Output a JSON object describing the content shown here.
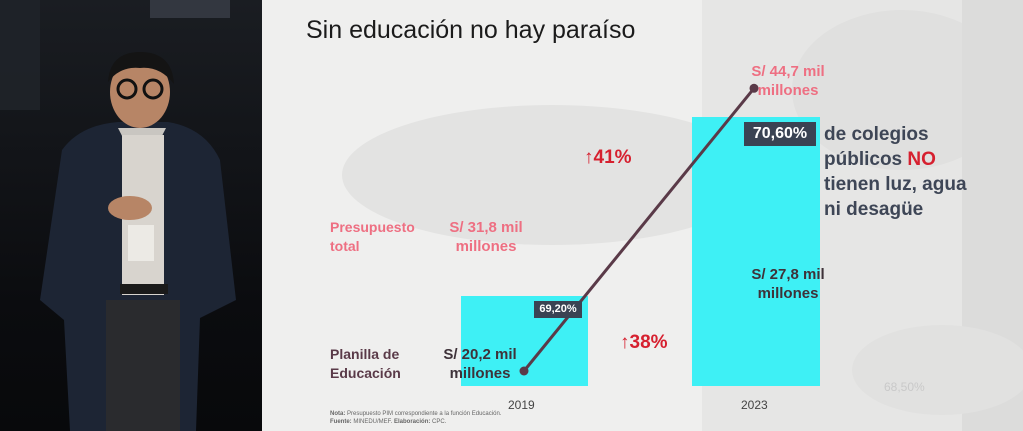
{
  "slide": {
    "title": "Sin educación no hay paraíso",
    "note_label": "Nota:",
    "note_text": "Presupuesto PIM correspondiente a la función Educación.",
    "source_label": "Fuente:",
    "source_text": "MINEDU/MEF.",
    "elab_label": "Elaboración:",
    "elab_text": "CPC.",
    "ghost_value": "68,50%"
  },
  "colors": {
    "bar": "#3ef0f5",
    "presupuesto_line": "#ee6f82",
    "planilla_line": "#5a3a48",
    "growth": "#d6202f",
    "badge": "#3a4353"
  },
  "chart_data": {
    "type": "bar",
    "categories": [
      "2019",
      "2023"
    ],
    "series": [
      {
        "name": "",
        "type": "bar",
        "values": [
          69.2,
          70.6
        ],
        "labels": [
          "69,20%",
          "70,60%"
        ]
      },
      {
        "name": "Presupuesto total",
        "type": "line",
        "values": [
          31.8,
          44.7
        ],
        "labels": [
          "S/ 31,8 mil millones",
          "S/ 44,7 mil millones"
        ],
        "growth": "41%"
      },
      {
        "name": "Planilla de Educación",
        "type": "line",
        "values": [
          20.2,
          27.8
        ],
        "labels": [
          "S/ 20,2 mil millones",
          "S/ 27,8 mil millones"
        ],
        "growth": "38%"
      }
    ],
    "title": "Sin educación no hay paraíso",
    "annotation": {
      "value": "70,60%",
      "line1": "de colegios",
      "line2a": "públicos",
      "line2b": "NO",
      "line3": "tienen luz, agua",
      "line4": "ni desagüe"
    }
  }
}
